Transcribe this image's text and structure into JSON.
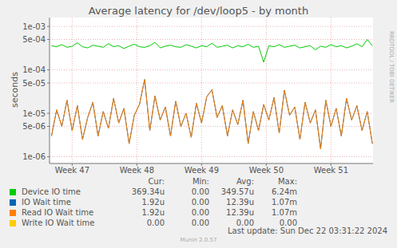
{
  "chart_data": {
    "type": "line",
    "title": "Average latency for /dev/loop5 - by month",
    "y_label": "seconds",
    "log": "y",
    "grid": true,
    "side_text": "RRDTOOL / TOBI OETIKER",
    "footer": "Munin 2.0.57",
    "last_update": "Last update: Sun Dec 22 03:31:22 2024",
    "stats_columns": [
      "Cur:",
      "Min:",
      "Avg:",
      "Max:"
    ],
    "xlim": [
      46.65,
      51.65
    ],
    "xticks": [
      {
        "value": 47,
        "label": "Week 47"
      },
      {
        "value": 48,
        "label": "Week 48"
      },
      {
        "value": 49,
        "label": "Week 49"
      },
      {
        "value": 50,
        "label": "Week 50"
      },
      {
        "value": 51,
        "label": "Week 51"
      }
    ],
    "ylim": [
      7e-07,
      0.0016
    ],
    "yticks": [
      {
        "value": 1e-06,
        "label": "1e-06"
      },
      {
        "value": 5e-06,
        "label": "5e-06"
      },
      {
        "value": 1e-05,
        "label": "1e-05"
      },
      {
        "value": 5e-05,
        "label": "5e-05"
      },
      {
        "value": 0.0001,
        "label": "1e-04"
      },
      {
        "value": 0.0005,
        "label": "5e-04"
      },
      {
        "value": 0.001,
        "label": "1e-03"
      }
    ],
    "x": [
      46.68,
      46.76,
      46.84,
      46.92,
      47.0,
      47.08,
      47.16,
      47.24,
      47.32,
      47.4,
      47.48,
      47.56,
      47.64,
      47.72,
      47.8,
      47.88,
      47.96,
      48.04,
      48.12,
      48.2,
      48.28,
      48.36,
      48.44,
      48.52,
      48.6,
      48.68,
      48.76,
      48.84,
      48.92,
      49.0,
      49.08,
      49.16,
      49.24,
      49.32,
      49.4,
      49.48,
      49.56,
      49.64,
      49.72,
      49.8,
      49.88,
      49.96,
      50.04,
      50.12,
      50.2,
      50.28,
      50.36,
      50.44,
      50.52,
      50.6,
      50.68,
      50.76,
      50.84,
      50.92,
      51.0,
      51.08,
      51.16,
      51.24,
      51.32,
      51.4,
      51.48,
      51.56,
      51.64
    ],
    "series": [
      {
        "name": "Device IO time",
        "color": "#00cc00",
        "stats": [
          "369.34u",
          "0.00",
          "349.57u",
          "6.24m"
        ],
        "values": [
          0.00036,
          0.00034,
          0.00038,
          0.00033,
          0.00035,
          0.00042,
          0.00034,
          0.00032,
          0.00037,
          0.00035,
          0.00033,
          0.0004,
          0.00034,
          0.00036,
          0.00031,
          0.00035,
          0.00039,
          0.00034,
          0.00033,
          0.00036,
          0.00043,
          0.00032,
          0.00035,
          0.00037,
          0.00034,
          0.00033,
          0.00038,
          0.00035,
          0.00032,
          0.00036,
          0.00034,
          0.00041,
          0.00033,
          0.00035,
          0.00037,
          0.00032,
          0.00036,
          0.00034,
          0.00039,
          0.00033,
          0.00035,
          0.00015,
          0.00036,
          0.00034,
          0.00038,
          0.00033,
          0.00035,
          0.00037,
          0.00032,
          0.00034,
          0.00036,
          0.00029,
          0.00035,
          0.00033,
          0.00038,
          0.00034,
          0.00036,
          0.00032,
          0.00035,
          0.0004,
          0.00034,
          0.0005,
          0.00036
        ]
      },
      {
        "name": "IO Wait time",
        "color": "#0066b3",
        "stats": [
          "1.92u",
          "0.00",
          "12.39u",
          "1.07m"
        ],
        "values": [
          3e-06,
          1.2e-05,
          5e-06,
          2e-05,
          4e-06,
          1.5e-05,
          2.5e-06,
          8e-06,
          1.8e-05,
          3e-06,
          1.1e-05,
          4.5e-06,
          2.2e-05,
          6e-06,
          1.3e-05,
          2e-06,
          9e-06,
          1.6e-05,
          6e-05,
          4e-06,
          2.5e-05,
          7e-06,
          1.4e-05,
          3e-06,
          1.9e-05,
          5e-06,
          1e-05,
          2.8e-06,
          1.7e-05,
          6e-06,
          2.4e-05,
          3.5e-05,
          8e-06,
          1.5e-05,
          3e-06,
          1.2e-05,
          5.5e-06,
          2e-05,
          2e-06,
          1.1e-05,
          4e-06,
          1.6e-05,
          7e-06,
          2.3e-05,
          3.5e-06,
          3.4e-05,
          9e-06,
          1.4e-05,
          2.5e-06,
          1.8e-05,
          6e-06,
          1.2e-05,
          1.5e-06,
          2e-05,
          5e-06,
          1.3e-05,
          3e-06,
          2.2e-05,
          7e-06,
          1.5e-05,
          4e-06,
          1.1e-05,
          2e-06
        ]
      },
      {
        "name": "Read IO Wait time",
        "color": "#ff8000",
        "stats": [
          "1.92u",
          "0.00",
          "12.39u",
          "1.07m"
        ],
        "values": [
          3e-06,
          1.2e-05,
          5e-06,
          2e-05,
          4e-06,
          1.5e-05,
          2.5e-06,
          8e-06,
          1.8e-05,
          3e-06,
          1.1e-05,
          4.5e-06,
          2.2e-05,
          6e-06,
          1.3e-05,
          2e-06,
          9e-06,
          1.6e-05,
          6e-05,
          4e-06,
          2.5e-05,
          7e-06,
          1.4e-05,
          3e-06,
          1.9e-05,
          5e-06,
          1e-05,
          2.8e-06,
          1.7e-05,
          6e-06,
          2.4e-05,
          3.5e-05,
          8e-06,
          1.5e-05,
          3e-06,
          1.2e-05,
          5.5e-06,
          2e-05,
          2e-06,
          1.1e-05,
          4e-06,
          1.6e-05,
          7e-06,
          2.3e-05,
          3.5e-06,
          3.4e-05,
          9e-06,
          1.4e-05,
          2.5e-06,
          1.8e-05,
          6e-06,
          1.2e-05,
          1.5e-06,
          2e-05,
          5e-06,
          1.3e-05,
          3e-06,
          2.2e-05,
          7e-06,
          1.5e-05,
          4e-06,
          1.1e-05,
          2e-06
        ]
      },
      {
        "name": "Write IO Wait time",
        "color": "#ffcc00",
        "stats": [
          "0.00",
          "0.00",
          "0.00",
          "0.00"
        ],
        "values": [
          null,
          null,
          null,
          null,
          null,
          null,
          null,
          null,
          null,
          null,
          null,
          null,
          null,
          null,
          null,
          null,
          null,
          null,
          null,
          null,
          null,
          null,
          null,
          null,
          null,
          null,
          null,
          null,
          null,
          null,
          null,
          null,
          null,
          null,
          null,
          null,
          null,
          null,
          null,
          null,
          null,
          null,
          null,
          null,
          null,
          null,
          null,
          null,
          null,
          null,
          null,
          null,
          null,
          null,
          null,
          null,
          null,
          null,
          null,
          null,
          null,
          null,
          null
        ]
      }
    ]
  }
}
